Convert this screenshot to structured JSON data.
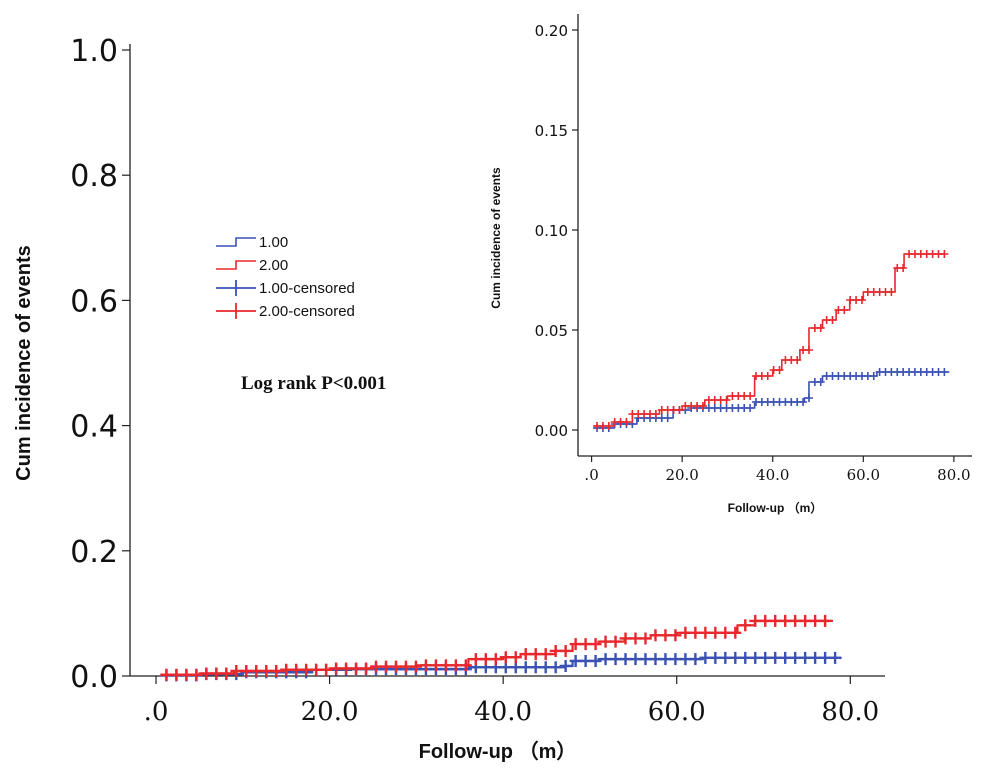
{
  "chart_data": [
    {
      "type": "line",
      "step": true,
      "xlabel": "Follow-up （m）",
      "ylabel": "Cum incidence of events",
      "xlim": [
        -3,
        84
      ],
      "ylim": [
        0,
        1.0
      ],
      "x_ticks": [
        ".0",
        "20.0",
        "40.0",
        "60.0",
        "80.0"
      ],
      "x_tick_values": [
        0,
        20,
        40,
        60,
        80
      ],
      "y_ticks": [
        "0.0",
        "0.2",
        "0.4",
        "0.6",
        "0.8",
        "1.0"
      ],
      "y_tick_values": [
        0,
        0.2,
        0.4,
        0.6,
        0.8,
        1.0
      ],
      "annotation": "Log rank P<0.001",
      "legend": {
        "placement": "center-left",
        "entries": [
          {
            "label": "1.00",
            "kind": "step",
            "color": "#3a52b4"
          },
          {
            "label": "2.00",
            "kind": "step",
            "color": "#e8282d"
          },
          {
            "label": "1.00-censored",
            "kind": "cross",
            "color": "#3a52b4"
          },
          {
            "label": "2.00-censored",
            "kind": "cross",
            "color": "#e8282d"
          }
        ]
      },
      "series": [
        {
          "name": "1.00",
          "color": "#3a52b4",
          "x": [
            0.5,
            5,
            10,
            18,
            22,
            36,
            47,
            48,
            51,
            60,
            63,
            79
          ],
          "y": [
            0.001,
            0.003,
            0.006,
            0.01,
            0.011,
            0.014,
            0.016,
            0.024,
            0.027,
            0.027,
            0.029,
            0.029
          ]
        },
        {
          "name": "2.00",
          "color": "#e8282d",
          "x": [
            0.5,
            5,
            9,
            15,
            20,
            25,
            30,
            36,
            40,
            42,
            46,
            48,
            51,
            54,
            57,
            60,
            67,
            69,
            78
          ],
          "y": [
            0.002,
            0.004,
            0.008,
            0.01,
            0.012,
            0.015,
            0.017,
            0.027,
            0.03,
            0.035,
            0.04,
            0.051,
            0.055,
            0.06,
            0.065,
            0.069,
            0.081,
            0.088,
            0.088
          ]
        }
      ]
    },
    {
      "type": "line",
      "step": true,
      "xlabel": "Follow-up （m）",
      "ylabel": "Cum incidence of events",
      "xlim": [
        -3,
        84
      ],
      "ylim": [
        -0.013,
        0.205
      ],
      "x_ticks": [
        ".0",
        "20.0",
        "40.0",
        "60.0",
        "80.0"
      ],
      "x_tick_values": [
        0,
        20,
        40,
        60,
        80
      ],
      "y_ticks": [
        "0.00",
        "0.05",
        "0.10",
        "0.15",
        "0.20"
      ],
      "y_tick_values": [
        0,
        0.05,
        0.1,
        0.15,
        0.2
      ],
      "series": [
        {
          "name": "1.00",
          "color": "#3a52b4",
          "x": [
            0.5,
            5,
            10,
            18,
            22,
            36,
            47,
            48,
            51,
            60,
            63,
            79
          ],
          "y": [
            0.001,
            0.003,
            0.006,
            0.01,
            0.011,
            0.014,
            0.016,
            0.024,
            0.027,
            0.027,
            0.029,
            0.029
          ]
        },
        {
          "name": "2.00",
          "color": "#e8282d",
          "x": [
            0.5,
            5,
            9,
            15,
            20,
            25,
            30,
            36,
            40,
            42,
            46,
            48,
            51,
            54,
            57,
            60,
            67,
            69,
            78
          ],
          "y": [
            0.002,
            0.004,
            0.008,
            0.01,
            0.012,
            0.015,
            0.017,
            0.027,
            0.03,
            0.035,
            0.04,
            0.051,
            0.055,
            0.06,
            0.065,
            0.069,
            0.081,
            0.088,
            0.088
          ]
        }
      ]
    }
  ]
}
